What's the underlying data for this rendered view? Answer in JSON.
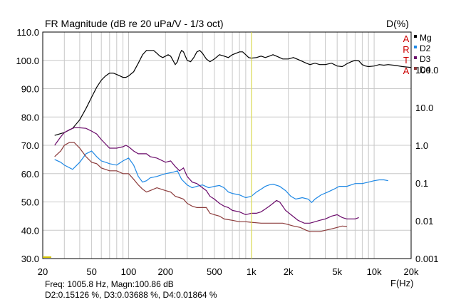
{
  "chart_data": {
    "type": "line",
    "title": "FR Magnitude (dB re 20 uPa/V - 1/3 oct)",
    "right_title": "D(%)",
    "xlabel": "F(Hz)",
    "x_scale": "log",
    "xlim": [
      20,
      20000
    ],
    "ylim_left": [
      30,
      110
    ],
    "ylim_right": [
      0.001,
      1000
    ],
    "y_right_scale": "log",
    "grid": true,
    "legend_position": "top-right",
    "artа_letters": [
      "A",
      "R",
      "T",
      "A"
    ],
    "x_ticks": [
      {
        "v": 20,
        "label": "20"
      },
      {
        "v": 50,
        "label": "50"
      },
      {
        "v": 100,
        "label": "100"
      },
      {
        "v": 200,
        "label": "200"
      },
      {
        "v": 500,
        "label": "500"
      },
      {
        "v": 1000,
        "label": "1k"
      },
      {
        "v": 2000,
        "label": "2k"
      },
      {
        "v": 5000,
        "label": "5k"
      },
      {
        "v": 10000,
        "label": "10k"
      },
      {
        "v": 20000,
        "label": "20k"
      }
    ],
    "y_left_ticks": [
      {
        "v": 110,
        "label": "110.0"
      },
      {
        "v": 100,
        "label": "100.0"
      },
      {
        "v": 90,
        "label": "90.0"
      },
      {
        "v": 80,
        "label": "80.0"
      },
      {
        "v": 70,
        "label": "70.0"
      },
      {
        "v": 60,
        "label": "60.0"
      },
      {
        "v": 50,
        "label": "50.0"
      },
      {
        "v": 40,
        "label": "40.0"
      },
      {
        "v": 30,
        "label": "30.0"
      }
    ],
    "y_right_ticks": [
      {
        "v": 100,
        "label": "100.0"
      },
      {
        "v": 10,
        "label": "10.0"
      },
      {
        "v": 1,
        "label": "1.0"
      },
      {
        "v": 0.1,
        "label": "0.1"
      },
      {
        "v": 0.01,
        "label": "0.01"
      },
      {
        "v": 0.001,
        "label": "0.001"
      }
    ],
    "marker": {
      "freq": 1005.8
    },
    "series": [
      {
        "name": "Mg",
        "color": "#000000",
        "points": [
          [
            25,
            73.5
          ],
          [
            30,
            74.5
          ],
          [
            35,
            76
          ],
          [
            40,
            79
          ],
          [
            45,
            83
          ],
          [
            50,
            87
          ],
          [
            55,
            90.5
          ],
          [
            60,
            93
          ],
          [
            65,
            94.5
          ],
          [
            70,
            95.5
          ],
          [
            75,
            95.5
          ],
          [
            80,
            95
          ],
          [
            85,
            94.5
          ],
          [
            90,
            94
          ],
          [
            95,
            94
          ],
          [
            100,
            94.5
          ],
          [
            110,
            96
          ],
          [
            120,
            99
          ],
          [
            130,
            102
          ],
          [
            140,
            103.5
          ],
          [
            150,
            103.5
          ],
          [
            160,
            103.5
          ],
          [
            170,
            102.5
          ],
          [
            180,
            101.5
          ],
          [
            190,
            101
          ],
          [
            200,
            101.5
          ],
          [
            210,
            102
          ],
          [
            220,
            101.5
          ],
          [
            230,
            100
          ],
          [
            240,
            98.5
          ],
          [
            250,
            99.5
          ],
          [
            260,
            102
          ],
          [
            270,
            103.5
          ],
          [
            280,
            103
          ],
          [
            290,
            101.5
          ],
          [
            300,
            100
          ],
          [
            320,
            99.5
          ],
          [
            340,
            101
          ],
          [
            360,
            103
          ],
          [
            380,
            103.5
          ],
          [
            400,
            102.5
          ],
          [
            430,
            100.5
          ],
          [
            460,
            99.5
          ],
          [
            500,
            100.5
          ],
          [
            550,
            102
          ],
          [
            600,
            101.5
          ],
          [
            650,
            101
          ],
          [
            700,
            102
          ],
          [
            750,
            102.5
          ],
          [
            800,
            103
          ],
          [
            850,
            103
          ],
          [
            900,
            102
          ],
          [
            950,
            101
          ],
          [
            1000,
            100.8
          ],
          [
            1100,
            101
          ],
          [
            1200,
            101.5
          ],
          [
            1300,
            101
          ],
          [
            1400,
            101.5
          ],
          [
            1500,
            102
          ],
          [
            1600,
            101.5
          ],
          [
            1700,
            101
          ],
          [
            1800,
            100.5
          ],
          [
            2000,
            100.5
          ],
          [
            2200,
            101
          ],
          [
            2500,
            100
          ],
          [
            2800,
            99
          ],
          [
            3000,
            98.5
          ],
          [
            3300,
            99
          ],
          [
            3600,
            98.5
          ],
          [
            4000,
            98.5
          ],
          [
            4500,
            99
          ],
          [
            5000,
            98
          ],
          [
            5500,
            97.8
          ],
          [
            6000,
            98.8
          ],
          [
            6500,
            99.5
          ],
          [
            7000,
            100
          ],
          [
            7500,
            99.8
          ],
          [
            8000,
            98.5
          ],
          [
            8500,
            98
          ],
          [
            9000,
            97.8
          ],
          [
            10000,
            98
          ],
          [
            11000,
            98.5
          ],
          [
            12000,
            98.3
          ],
          [
            13000,
            98.5
          ],
          [
            15000,
            98.2
          ],
          [
            17000,
            97.8
          ],
          [
            20000,
            97.5
          ]
        ]
      },
      {
        "name": "D2",
        "color": "#1e88e5",
        "points": [
          [
            25,
            65
          ],
          [
            28,
            64
          ],
          [
            30,
            63
          ],
          [
            35,
            61.5
          ],
          [
            40,
            64
          ],
          [
            45,
            67
          ],
          [
            50,
            68
          ],
          [
            55,
            66
          ],
          [
            60,
            64.5
          ],
          [
            65,
            64
          ],
          [
            70,
            63.5
          ],
          [
            80,
            63
          ],
          [
            90,
            64.5
          ],
          [
            100,
            65.5
          ],
          [
            110,
            63
          ],
          [
            120,
            59
          ],
          [
            130,
            57
          ],
          [
            140,
            57.5
          ],
          [
            150,
            58.5
          ],
          [
            170,
            59
          ],
          [
            200,
            60
          ],
          [
            230,
            60.5
          ],
          [
            250,
            61
          ],
          [
            270,
            58
          ],
          [
            300,
            56
          ],
          [
            330,
            55
          ],
          [
            360,
            55.5
          ],
          [
            400,
            56
          ],
          [
            450,
            55
          ],
          [
            500,
            55.5
          ],
          [
            550,
            55.8
          ],
          [
            600,
            55
          ],
          [
            650,
            53.5
          ],
          [
            700,
            53
          ],
          [
            800,
            52.5
          ],
          [
            900,
            51.5
          ],
          [
            1000,
            52
          ],
          [
            1100,
            53.5
          ],
          [
            1200,
            54.5
          ],
          [
            1300,
            55.5
          ],
          [
            1400,
            56
          ],
          [
            1500,
            56.3
          ],
          [
            1700,
            55.5
          ],
          [
            1900,
            54
          ],
          [
            2100,
            52
          ],
          [
            2300,
            51
          ],
          [
            2600,
            51.5
          ],
          [
            2900,
            51
          ],
          [
            3100,
            49.8
          ],
          [
            3300,
            51
          ],
          [
            3700,
            52.5
          ],
          [
            4200,
            53.5
          ],
          [
            4700,
            54.5
          ],
          [
            5200,
            55.5
          ],
          [
            6000,
            55.5
          ],
          [
            7000,
            56.5
          ],
          [
            8000,
            56.5
          ],
          [
            9000,
            57
          ],
          [
            10000,
            57.5
          ],
          [
            11000,
            57.8
          ],
          [
            12000,
            57.8
          ],
          [
            13000,
            57.5
          ]
        ]
      },
      {
        "name": "D3",
        "color": "#6a0a6a",
        "points": [
          [
            25,
            70
          ],
          [
            28,
            73
          ],
          [
            30,
            74.5
          ],
          [
            33,
            75.5
          ],
          [
            36,
            76.2
          ],
          [
            40,
            76.2
          ],
          [
            45,
            76
          ],
          [
            50,
            75
          ],
          [
            55,
            74
          ],
          [
            60,
            72
          ],
          [
            70,
            69
          ],
          [
            80,
            69
          ],
          [
            90,
            69.5
          ],
          [
            95,
            70
          ],
          [
            100,
            69.5
          ],
          [
            110,
            68
          ],
          [
            120,
            67
          ],
          [
            130,
            67
          ],
          [
            140,
            67
          ],
          [
            150,
            66
          ],
          [
            170,
            65.5
          ],
          [
            200,
            64
          ],
          [
            220,
            64.5
          ],
          [
            240,
            62.5
          ],
          [
            260,
            61
          ],
          [
            280,
            62
          ],
          [
            300,
            59
          ],
          [
            330,
            57
          ],
          [
            360,
            56.5
          ],
          [
            400,
            55
          ],
          [
            430,
            54
          ],
          [
            460,
            52
          ],
          [
            500,
            51
          ],
          [
            550,
            49.5
          ],
          [
            600,
            48.5
          ],
          [
            650,
            48
          ],
          [
            700,
            47
          ],
          [
            800,
            46.5
          ],
          [
            900,
            45.5
          ],
          [
            1000,
            46
          ],
          [
            1100,
            46
          ],
          [
            1200,
            46.5
          ],
          [
            1300,
            47.5
          ],
          [
            1400,
            48.5
          ],
          [
            1500,
            49.5
          ],
          [
            1600,
            50.5
          ],
          [
            1700,
            50
          ],
          [
            1800,
            48.5
          ],
          [
            1900,
            47
          ],
          [
            2100,
            45.5
          ],
          [
            2400,
            43.5
          ],
          [
            2700,
            42.5
          ],
          [
            3000,
            42.5
          ],
          [
            3300,
            43
          ],
          [
            3600,
            43.5
          ],
          [
            4000,
            44
          ],
          [
            4500,
            45
          ],
          [
            5000,
            45.5
          ],
          [
            5500,
            44.5
          ],
          [
            6000,
            44
          ],
          [
            6500,
            44
          ],
          [
            7000,
            44
          ],
          [
            7500,
            44.5
          ]
        ]
      },
      {
        "name": "D4",
        "color": "#8b3a3a",
        "points": [
          [
            25,
            66
          ],
          [
            28,
            68
          ],
          [
            30,
            70
          ],
          [
            33,
            71
          ],
          [
            36,
            71
          ],
          [
            40,
            69
          ],
          [
            45,
            66
          ],
          [
            50,
            64
          ],
          [
            55,
            63.5
          ],
          [
            60,
            62
          ],
          [
            70,
            61
          ],
          [
            80,
            61
          ],
          [
            90,
            60
          ],
          [
            100,
            60
          ],
          [
            110,
            58
          ],
          [
            120,
            56
          ],
          [
            130,
            54.5
          ],
          [
            140,
            53.5
          ],
          [
            150,
            54
          ],
          [
            170,
            55
          ],
          [
            200,
            54
          ],
          [
            220,
            53.5
          ],
          [
            240,
            52
          ],
          [
            260,
            51.5
          ],
          [
            280,
            51
          ],
          [
            300,
            49.5
          ],
          [
            330,
            48.5
          ],
          [
            360,
            48
          ],
          [
            400,
            48
          ],
          [
            430,
            48
          ],
          [
            460,
            46
          ],
          [
            500,
            45.5
          ],
          [
            550,
            45
          ],
          [
            600,
            44
          ],
          [
            700,
            43.5
          ],
          [
            800,
            43
          ],
          [
            900,
            43
          ],
          [
            1000,
            42.8
          ],
          [
            1200,
            42.5
          ],
          [
            1400,
            42.5
          ],
          [
            1600,
            42.5
          ],
          [
            1800,
            42.5
          ],
          [
            2000,
            42
          ],
          [
            2200,
            41.5
          ],
          [
            2500,
            41
          ],
          [
            2800,
            40
          ],
          [
            3000,
            39.5
          ],
          [
            3300,
            39.5
          ],
          [
            3600,
            39.5
          ],
          [
            4000,
            40
          ],
          [
            4500,
            40.5
          ],
          [
            5000,
            41
          ],
          [
            5500,
            41.5
          ],
          [
            6000,
            41.3
          ]
        ]
      }
    ]
  },
  "legend": [
    {
      "name": "Mg",
      "color": "#000000"
    },
    {
      "name": "D2",
      "color": "#1e88e5"
    },
    {
      "name": "D3",
      "color": "#6a0a6a"
    },
    {
      "name": "D4",
      "color": "#8b3a3a"
    }
  ],
  "readout": {
    "line1": "Freq: 1005.8 Hz, Magn:100.86 dB",
    "line2": "D2:0.15126 %, D3:0.03688 %, D4:0.01864 %"
  }
}
